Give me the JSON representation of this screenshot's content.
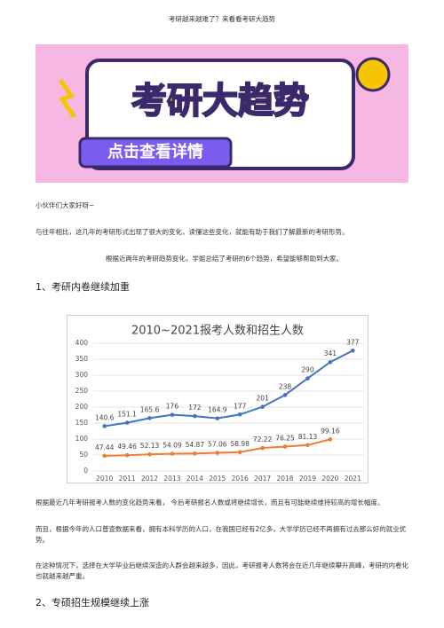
{
  "header": {
    "title": "考研越来越难了？来看看考研大趋势"
  },
  "banner": {
    "title": "考研大趋势",
    "button": "点击查看详情"
  },
  "paragraphs": [
    "小伙伴们大家好呀~",
    "与往年相比，这几年的考研形式出现了很大的变化，读懂这些变化，就能有助于我们了解最新的考研形势。",
    "根据近两年的考研趋势变化，学姐总结了考研的6个趋势，希望能够帮助到大家。"
  ],
  "headings": [
    "1、考研内卷继续加重",
    "2、专硕招生规模继续上涨"
  ],
  "chart_data": {
    "type": "line",
    "title": "2010~2021报考人数和招生人数",
    "categories": [
      "2010",
      "2011",
      "2012",
      "2013",
      "2014",
      "2015",
      "2016",
      "2017",
      "2018",
      "2019",
      "2020",
      "2021"
    ],
    "series": [
      {
        "color": "#4472c4",
        "values": [
          140.6,
          151.1,
          165.6,
          176,
          172,
          164.9,
          177,
          201,
          238,
          290,
          341,
          377
        ]
      },
      {
        "color": "#ed7d31",
        "values": [
          47.44,
          49.46,
          52.13,
          54.09,
          54.87,
          57.06,
          58.98,
          72.22,
          76.25,
          81.13,
          99.16,
          null
        ]
      }
    ],
    "ylim": [
      0,
      400
    ],
    "yticks": [
      0,
      50,
      100,
      150,
      200,
      250,
      300,
      350,
      400
    ],
    "grid": true
  },
  "paragraphs2": [
    "根据最近几年考研报考人数的变化趋势来看，    今后考研报名人数或将继续增长，而且有可能继续维持较高的增长幅度。",
    "而且，根据今年的人口普查数据来看，拥有本科学历的人口，在我国已经有2亿多，大学学历已经不再拥有过去那么好的就业优势。",
    "在这种情况下，选择在大学毕业后继续深造的人群会越来越多，因此，考研报考人数将会在近几年继续攀升高峰，考研的内卷化也就越来越严重。"
  ]
}
